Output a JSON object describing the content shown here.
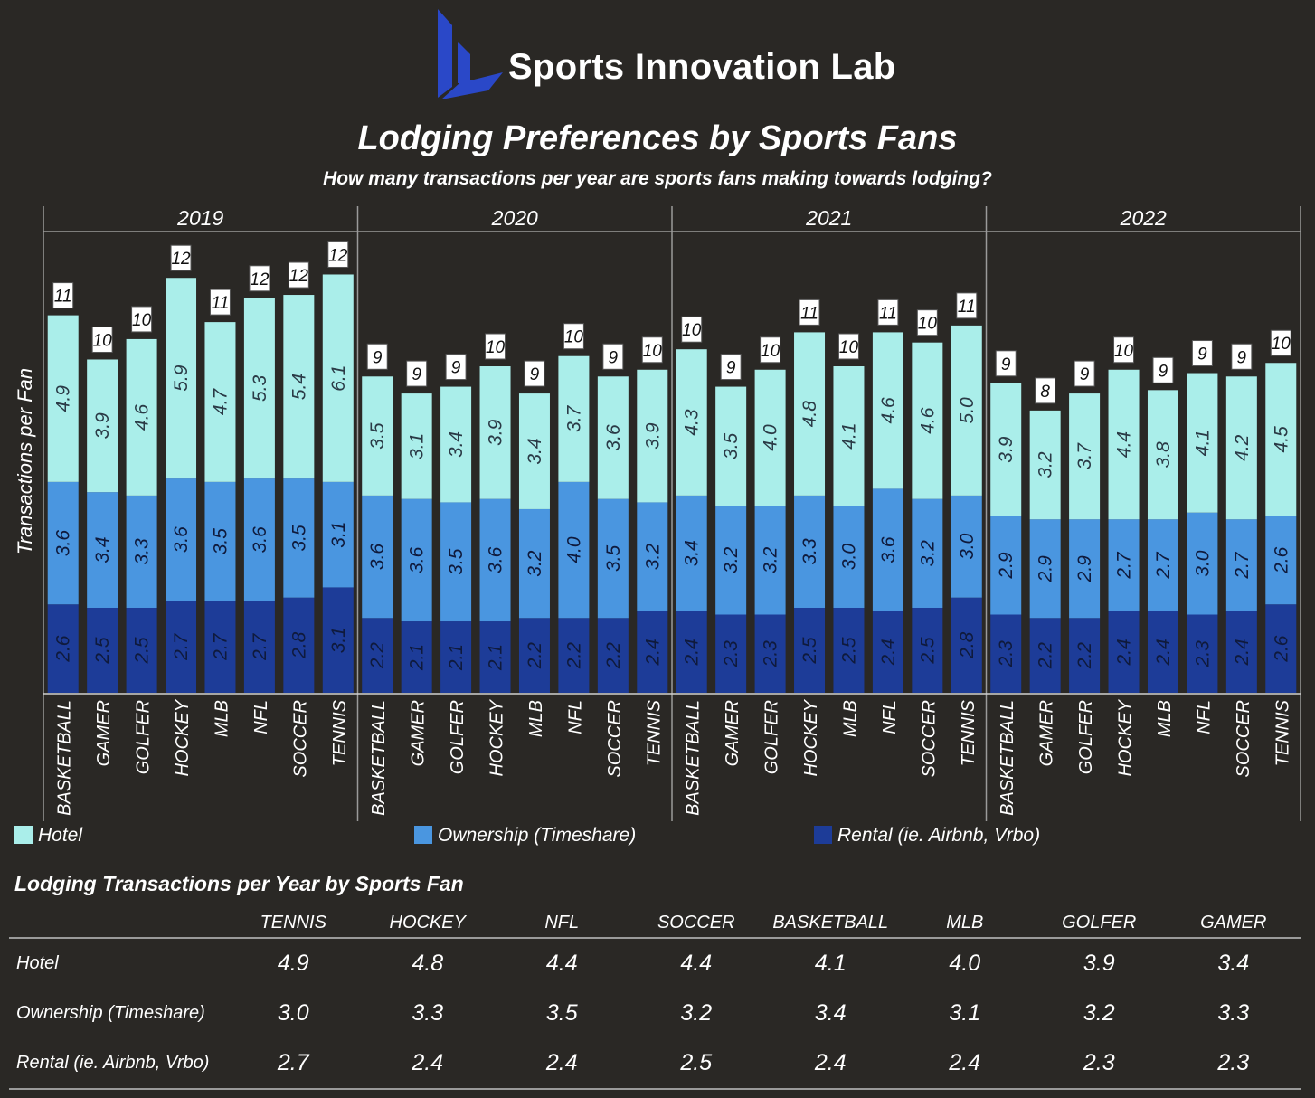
{
  "brand": {
    "name": "Sports Innovation Lab",
    "logo_icon": "sil-logo-icon"
  },
  "header": {
    "title": "Lodging Preferences by Sports Fans",
    "subtitle": "How many transactions per year are sports fans making towards lodging?"
  },
  "colors": {
    "background": "#2a2825",
    "hotel": "#aaeeea",
    "ownership": "#4a96e0",
    "rental": "#1d3c98",
    "logo_blue": "#2a48c8"
  },
  "chart_data": {
    "type": "bar",
    "stacked": true,
    "ylabel": "Transactions per Fan",
    "ylim": [
      0,
      12.5
    ],
    "grid": false,
    "legend_position": "bottom",
    "groups": [
      "2019",
      "2020",
      "2021",
      "2022"
    ],
    "categories": [
      "BASKETBALL",
      "GAMER",
      "GOLFER",
      "HOCKEY",
      "MLB",
      "NFL",
      "SOCCER",
      "TENNIS"
    ],
    "series": [
      {
        "name": "Rental (ie. Airbnb, Vrbo)",
        "key": "rental",
        "values": [
          [
            "2.6",
            "2.5",
            "2.5",
            "2.7",
            "2.7",
            "2.7",
            "2.8",
            "3.1"
          ],
          [
            "2.2",
            "2.1",
            "2.1",
            "2.1",
            "2.2",
            "2.2",
            "2.2",
            "2.4"
          ],
          [
            "2.4",
            "2.3",
            "2.3",
            "2.5",
            "2.5",
            "2.4",
            "2.5",
            "2.8"
          ],
          [
            "2.3",
            "2.2",
            "2.2",
            "2.4",
            "2.4",
            "2.3",
            "2.4",
            "2.6"
          ]
        ]
      },
      {
        "name": "Ownership (Timeshare)",
        "key": "ownership",
        "values": [
          [
            "3.6",
            "3.4",
            "3.3",
            "3.6",
            "3.5",
            "3.6",
            "3.5",
            "3.1"
          ],
          [
            "3.6",
            "3.6",
            "3.5",
            "3.6",
            "3.2",
            "4.0",
            "3.5",
            "3.2"
          ],
          [
            "3.4",
            "3.2",
            "3.2",
            "3.3",
            "3.0",
            "3.6",
            "3.2",
            "3.0"
          ],
          [
            "2.9",
            "2.9",
            "2.9",
            "2.7",
            "2.7",
            "3.0",
            "2.7",
            "2.6"
          ]
        ]
      },
      {
        "name": "Hotel",
        "key": "hotel",
        "values": [
          [
            "4.9",
            "3.9",
            "4.6",
            "5.9",
            "4.7",
            "5.3",
            "5.4",
            "6.1"
          ],
          [
            "3.5",
            "3.1",
            "3.4",
            "3.9",
            "3.4",
            "3.7",
            "3.6",
            "3.9"
          ],
          [
            "4.3",
            "3.5",
            "4.0",
            "4.8",
            "4.1",
            "4.6",
            "4.6",
            "5.0"
          ],
          [
            "3.9",
            "3.2",
            "3.7",
            "4.4",
            "3.8",
            "4.1",
            "4.2",
            "4.5"
          ]
        ]
      }
    ],
    "totals": [
      [
        "11",
        "10",
        "10",
        "12",
        "11",
        "12",
        "12",
        "12"
      ],
      [
        "9",
        "9",
        "9",
        "10",
        "9",
        "10",
        "9",
        "10"
      ],
      [
        "10",
        "9",
        "10",
        "11",
        "10",
        "11",
        "10",
        "11"
      ],
      [
        "9",
        "8",
        "9",
        "10",
        "9",
        "9",
        "9",
        "10"
      ]
    ]
  },
  "legend": {
    "hotel": "Hotel",
    "ownership": "Ownership (Timeshare)",
    "rental": "Rental (ie. Airbnb, Vrbo)"
  },
  "summary_table": {
    "title": "Lodging Transactions per Year by Sports Fan",
    "columns": [
      "TENNIS",
      "HOCKEY",
      "NFL",
      "SOCCER",
      "BASKETBALL",
      "MLB",
      "GOLFER",
      "GAMER"
    ],
    "rows": [
      {
        "label": "Hotel",
        "values": [
          "4.9",
          "4.8",
          "4.4",
          "4.4",
          "4.1",
          "4.0",
          "3.9",
          "3.4"
        ]
      },
      {
        "label": "Ownership (Timeshare)",
        "values": [
          "3.0",
          "3.3",
          "3.5",
          "3.2",
          "3.4",
          "3.1",
          "3.2",
          "3.3"
        ]
      },
      {
        "label": "Rental (ie. Airbnb, Vrbo)",
        "values": [
          "2.7",
          "2.4",
          "2.4",
          "2.5",
          "2.4",
          "2.4",
          "2.3",
          "2.3"
        ]
      }
    ]
  }
}
